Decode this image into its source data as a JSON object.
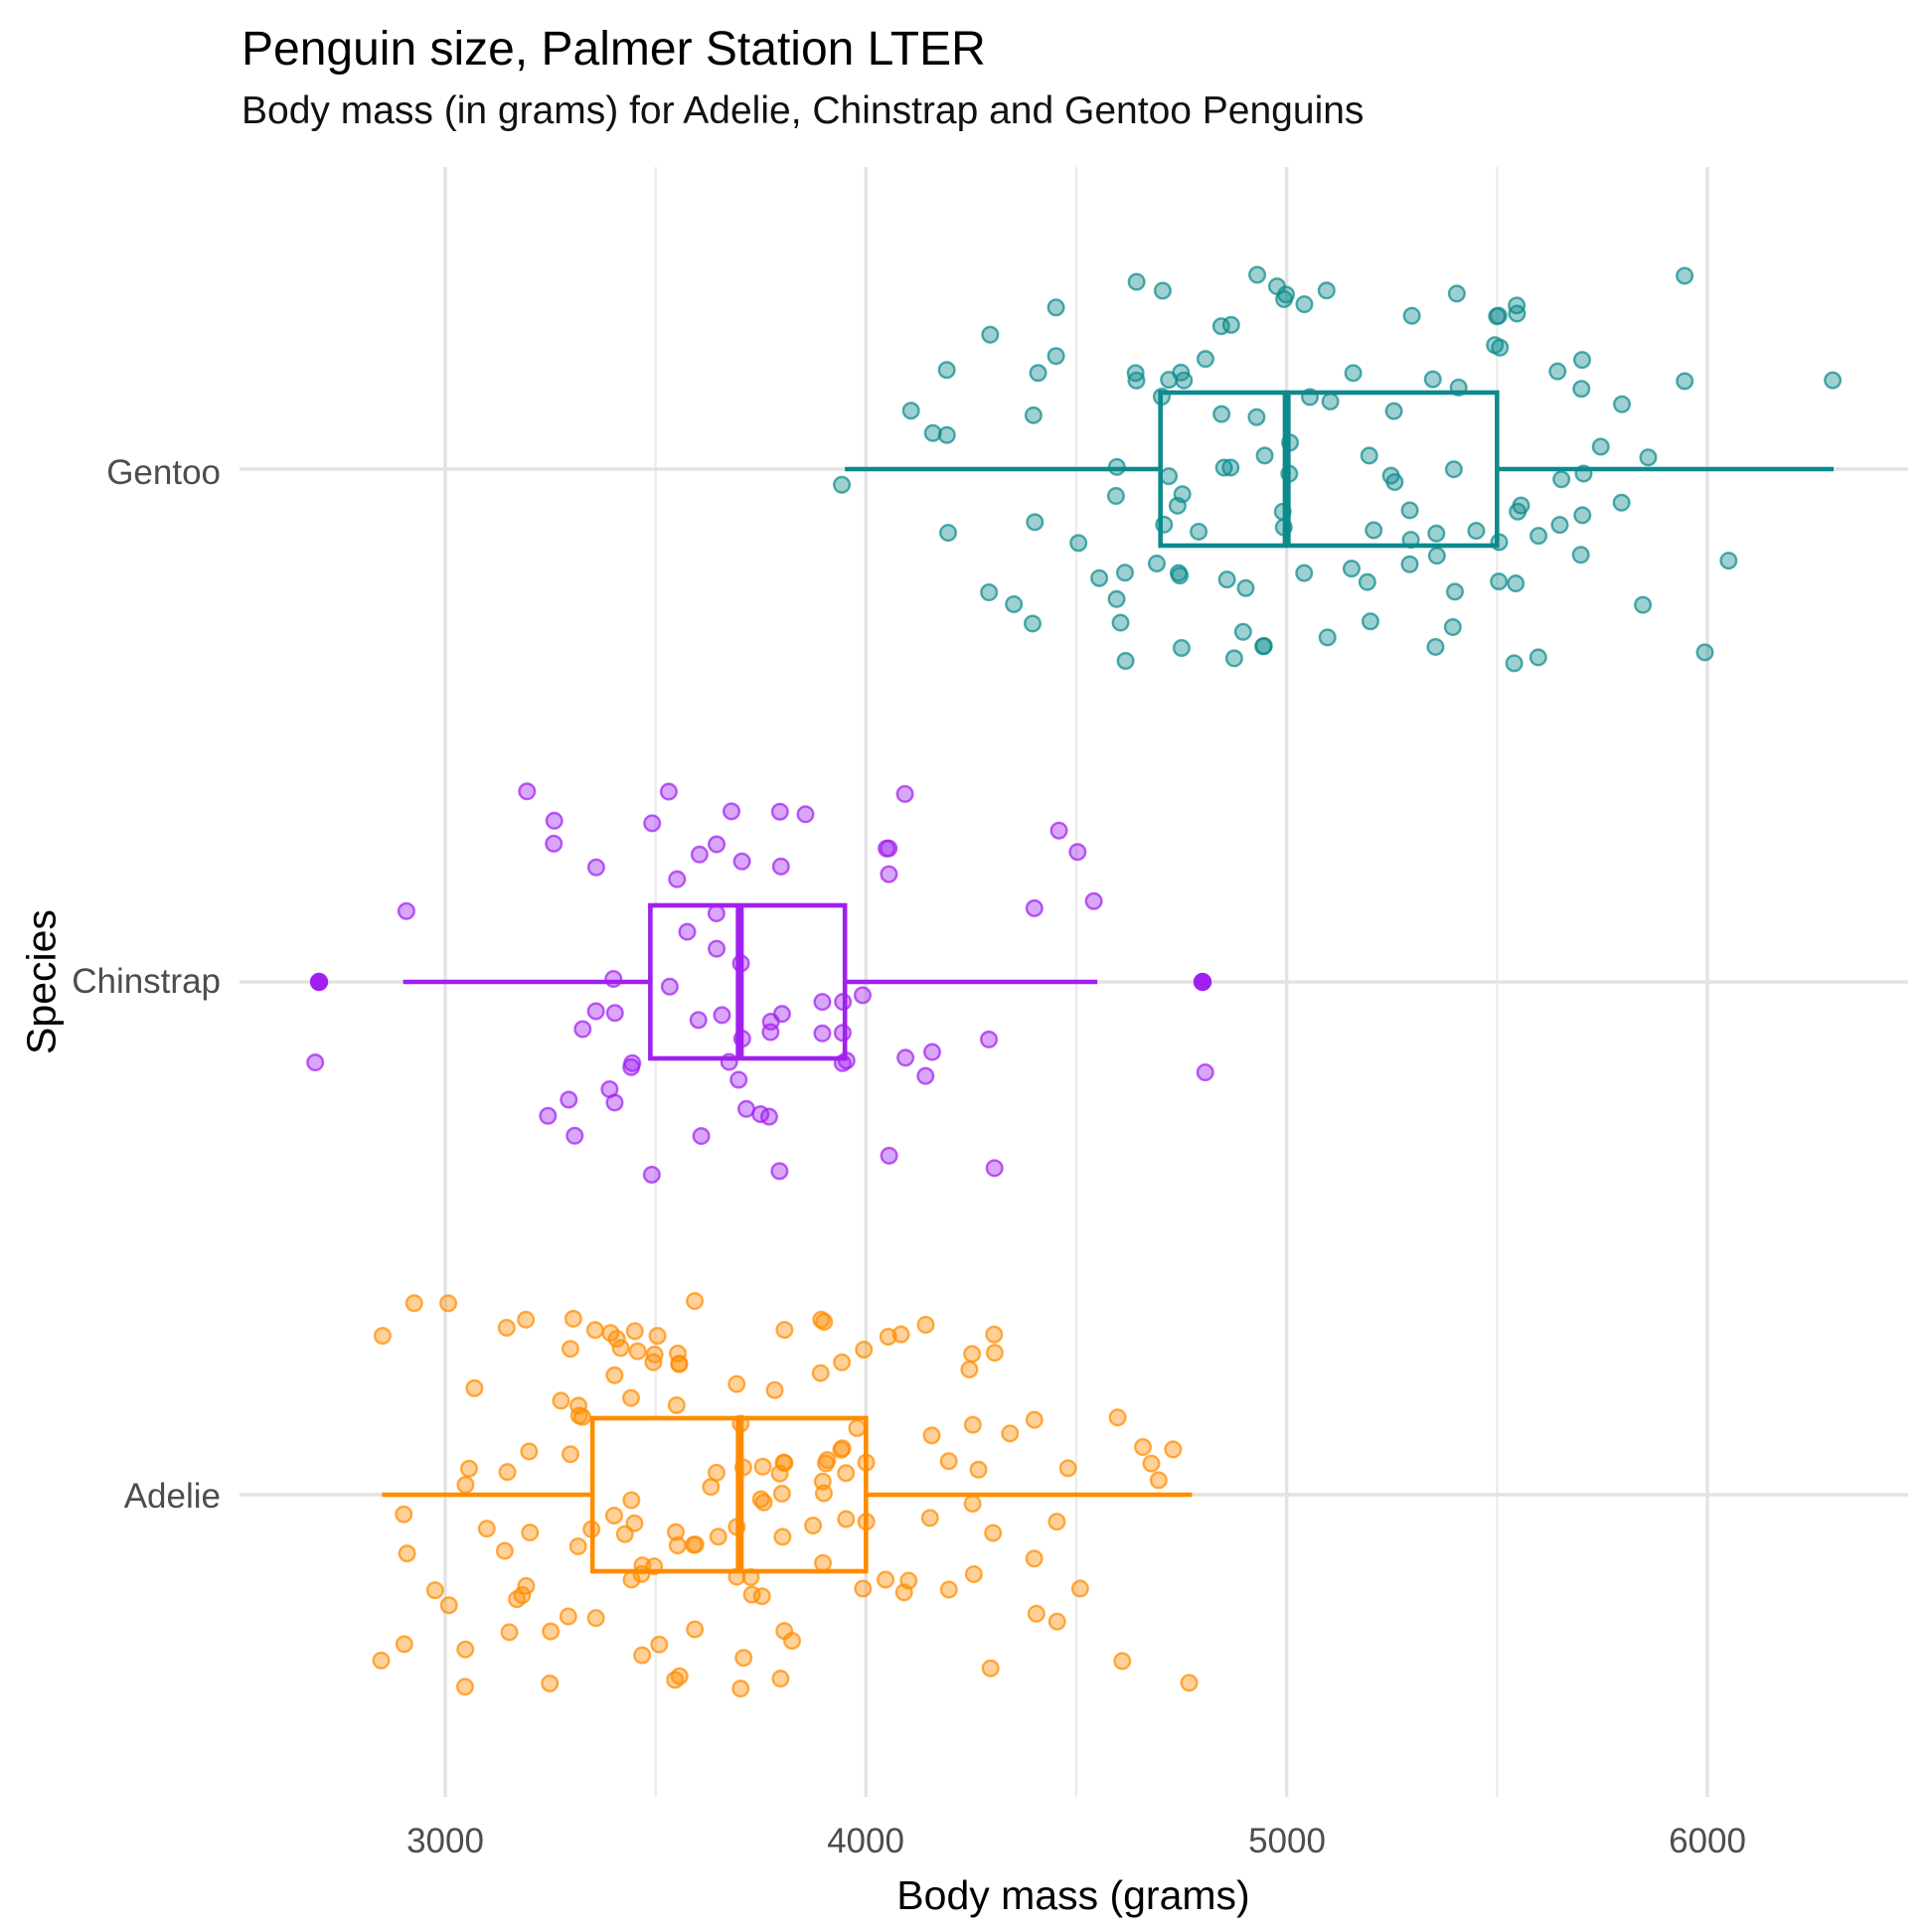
{
  "header": {
    "title": "Penguin size, Palmer Station LTER",
    "subtitle": "Body mass (in grams) for Adelie, Chinstrap and Gentoo Penguins"
  },
  "axes": {
    "x": {
      "title": "Body mass (grams)",
      "tick_labels": [
        "3000",
        "4000",
        "5000",
        "6000"
      ],
      "tick_values": [
        3000,
        4000,
        5000,
        6000
      ],
      "minor_tick_values": [
        3500,
        4500,
        5500
      ],
      "range": [
        2520,
        6480
      ]
    },
    "y": {
      "title": "Species",
      "categories_top_to_bottom": [
        "Gentoo",
        "Chinstrap",
        "Adelie"
      ]
    }
  },
  "style": {
    "background": "#FFFFFF",
    "grid_major": "#E3E3E3",
    "grid_minor": "#ECECEC",
    "axis_text_color": "#4D4D4D",
    "title_color": "#000000",
    "adelie_color": "#FF8C00",
    "chinstrap_color": "#A020F0",
    "gentoo_color": "#0D8A8C"
  },
  "chart_data": {
    "type": "boxplot",
    "orientation": "horizontal",
    "title": "Penguin size, Palmer Station LTER",
    "subtitle": "Body mass (in grams) for Adelie, Chinstrap and Gentoo Penguins",
    "xlabel": "Body mass (grams)",
    "ylabel": "Species",
    "xlim": [
      2520,
      6480
    ],
    "grid": true,
    "legend": false,
    "jitter_points": true,
    "series": [
      {
        "name": "Adelie",
        "color": "#FF8C00",
        "box": {
          "whisker_low": 2850,
          "q1": 3350,
          "median": 3700,
          "q3": 4000,
          "whisker_high": 4775
        },
        "outliers": [],
        "points": [
          3750,
          3800,
          3250,
          3450,
          3650,
          3625,
          4675,
          3475,
          4250,
          3300,
          3700,
          3200,
          3800,
          4400,
          3700,
          3450,
          4500,
          3325,
          4200,
          3400,
          3600,
          3800,
          3950,
          3800,
          3800,
          3550,
          3200,
          3150,
          3950,
          3250,
          3900,
          3300,
          3900,
          3325,
          4150,
          3950,
          3550,
          3300,
          4650,
          3150,
          3900,
          3100,
          4400,
          3000,
          4600,
          3425,
          2975,
          3450,
          4150,
          3500,
          4300,
          3450,
          4050,
          2900,
          3700,
          3550,
          3800,
          2850,
          3750,
          3150,
          4400,
          3600,
          4050,
          2850,
          3950,
          3350,
          4100,
          3050,
          4450,
          3600,
          3900,
          3550,
          4150,
          3700,
          4250,
          3700,
          3900,
          3550,
          4000,
          3200,
          4700,
          3800,
          4200,
          3350,
          3550,
          3800,
          3500,
          3950,
          3600,
          3550,
          4300,
          3400,
          4450,
          3300,
          4300,
          3700,
          4350,
          2900,
          4100,
          3725,
          4725,
          3075,
          4250,
          2925,
          3550,
          3750,
          3900,
          3175,
          4775,
          3825,
          4600,
          3200,
          4275,
          3900,
          4075,
          2900,
          3775,
          3350,
          3325,
          3150,
          3500,
          3450,
          3875,
          3050,
          4000,
          3275,
          4300,
          3050,
          4000,
          3325,
          3500,
          3500,
          4475,
          3425,
          3900,
          3175,
          3975,
          3400,
          4250,
          3400,
          3475,
          3050,
          3725,
          3000,
          3650,
          4250,
          3475,
          3450,
          3750,
          3700,
          4000
        ]
      },
      {
        "name": "Chinstrap",
        "color": "#A020F0",
        "box": {
          "whisker_low": 2900,
          "q1": 3487.5,
          "median": 3700,
          "q3": 3950,
          "whisker_high": 4550
        },
        "outliers": [
          2700,
          4800
        ],
        "points": [
          3500,
          3900,
          3650,
          3525,
          3725,
          3950,
          3250,
          3750,
          4150,
          3700,
          3800,
          3775,
          3700,
          4050,
          3575,
          4050,
          3300,
          3700,
          3450,
          4400,
          3600,
          3400,
          2900,
          3800,
          3300,
          4150,
          3400,
          3800,
          3700,
          4550,
          3200,
          4300,
          3350,
          4100,
          3600,
          3900,
          3850,
          4800,
          2700,
          4500,
          3950,
          3650,
          3550,
          3500,
          3675,
          4450,
          3400,
          4300,
          3250,
          3675,
          3325,
          3950,
          3600,
          4050,
          3350,
          3450,
          3250,
          4050,
          3800,
          3525,
          3950,
          3650,
          3650,
          4000,
          3400,
          3775,
          4100,
          3775
        ]
      },
      {
        "name": "Gentoo",
        "color": "#0D8A8C",
        "box": {
          "whisker_low": 3950,
          "q1": 4700,
          "median": 5000,
          "q3": 5500,
          "whisker_high": 6300
        },
        "outliers": [],
        "points": [
          4500,
          5700,
          4450,
          5700,
          5400,
          4550,
          4800,
          5200,
          4400,
          5150,
          4650,
          5550,
          4650,
          5850,
          4200,
          5850,
          4150,
          6300,
          4800,
          5350,
          5700,
          5000,
          4400,
          5050,
          5000,
          5100,
          4100,
          5650,
          4600,
          5550,
          5250,
          4700,
          5050,
          6050,
          5150,
          5400,
          4950,
          5250,
          4350,
          5350,
          3950,
          5700,
          4300,
          4750,
          5550,
          4900,
          4200,
          5400,
          5100,
          5300,
          4850,
          5300,
          4400,
          5000,
          4900,
          5050,
          4300,
          5000,
          4450,
          5550,
          4200,
          5300,
          4400,
          5650,
          4700,
          5700,
          4650,
          5800,
          4700,
          5550,
          4750,
          5000,
          5100,
          5200,
          4700,
          5800,
          4600,
          6000,
          4750,
          5950,
          4625,
          5450,
          4725,
          5350,
          4750,
          5600,
          4600,
          5300,
          4875,
          5550,
          4950,
          5400,
          4750,
          5650,
          4850,
          5200,
          4925,
          4875,
          4625,
          5250,
          4850,
          5600,
          4975,
          5500,
          4725,
          5500,
          4750,
          5500,
          4600,
          5500,
          4875,
          5500,
          4950,
          5500,
          4750,
          5000,
          4925,
          4850,
          5750,
          5200,
          5350,
          5950,
          5400
        ]
      }
    ]
  }
}
